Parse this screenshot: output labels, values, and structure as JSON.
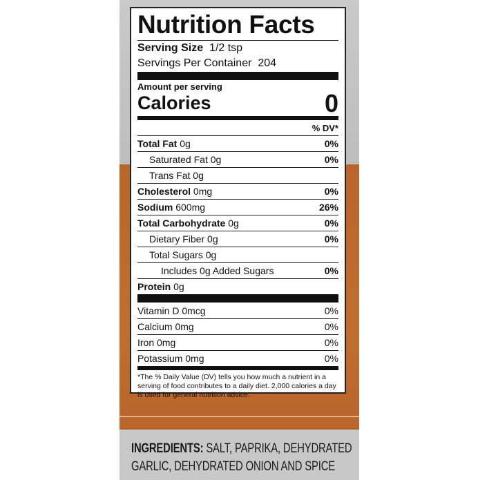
{
  "colors": {
    "orange": "#bb682d",
    "gray": "#c6c6c6"
  },
  "label": {
    "title": "Nutrition Facts",
    "serving_size_label": "Serving Size",
    "serving_size_value": "1/2 tsp",
    "servings_label": "Servings Per Container",
    "servings_value": "204",
    "amount_per_serving": "Amount per serving",
    "calories_label": "Calories",
    "calories_value": "0",
    "dv_header": "% DV*",
    "nutrients": [
      {
        "name": "Total Fat",
        "amount": "0g",
        "dv": "0%"
      },
      {
        "name": "Saturated Fat",
        "amount": "0g",
        "dv": "0%"
      },
      {
        "name": "Trans Fat",
        "amount": "0g",
        "dv": ""
      },
      {
        "name": "Cholesterol",
        "amount": "0mg",
        "dv": "0%"
      },
      {
        "name": "Sodium",
        "amount": "600mg",
        "dv": "26%"
      },
      {
        "name": "Total Carbohydrate",
        "amount": "0g",
        "dv": "0%"
      },
      {
        "name": "Dietary Fiber",
        "amount": "0g",
        "dv": "0%"
      },
      {
        "name": "Total Sugars",
        "amount": "0g",
        "dv": ""
      },
      {
        "name": "Includes 0g Added Sugars",
        "amount": "",
        "dv": "0%"
      },
      {
        "name": "Protein",
        "amount": "0g",
        "dv": ""
      }
    ],
    "vitamins": [
      {
        "name": "Vitamin D",
        "amount": "0mcg",
        "dv": "0%"
      },
      {
        "name": "Calcium",
        "amount": "0mg",
        "dv": "0%"
      },
      {
        "name": "Iron",
        "amount": "0mg",
        "dv": "0%"
      },
      {
        "name": "Potassium",
        "amount": "0mg",
        "dv": "0%"
      }
    ],
    "footnote": "*The % Daily Value (DV) tells you how much a nutrient in a serving of food contributes to a daily diet. 2,000 calories a day is used for general nutrition advice."
  },
  "ingredients": {
    "label": "INGREDIENTS:",
    "text": "SALT, PAPRIKA, DEHYDRATED GARLIC, DEHYDRATED ONION AND SPICE"
  }
}
